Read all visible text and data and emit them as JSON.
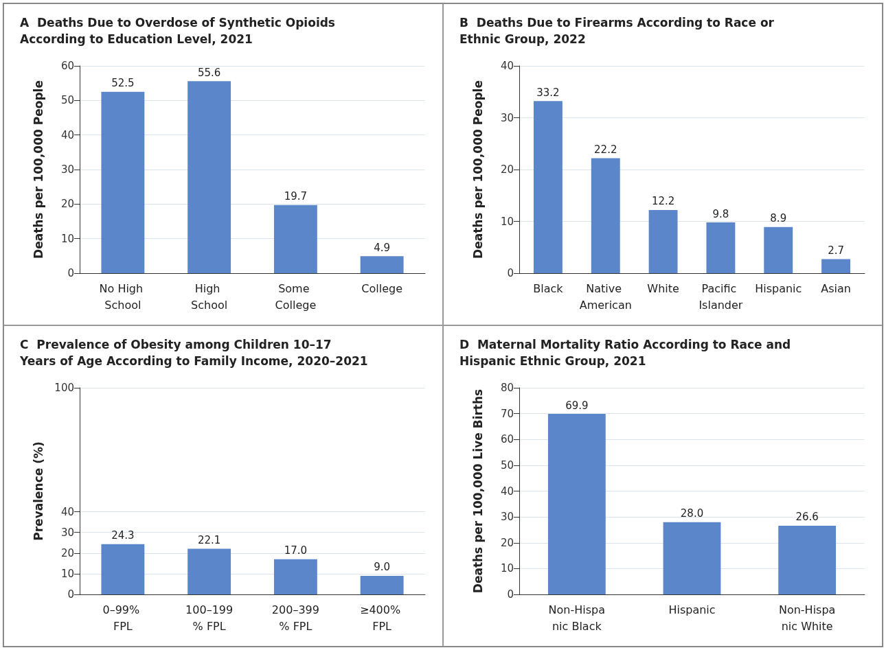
{
  "chart_data": [
    {
      "type": "bar",
      "title": "A  Deaths Due to Overdose of Synthetic Opioids According to Education Level, 2021",
      "ylabel": "Deaths per 100,000 People",
      "categories": [
        "No High School",
        "High School",
        "Some College",
        "College"
      ],
      "values": [
        52.5,
        55.6,
        19.7,
        4.9
      ],
      "value_labels": [
        "52.5",
        "55.6",
        "19.7",
        "4.9"
      ],
      "color": "#5b86c9",
      "ylim": [
        0,
        60
      ],
      "yticks": [
        0,
        10,
        20,
        30,
        40,
        50,
        60
      ],
      "grid": "y"
    },
    {
      "type": "bar",
      "title": "B  Deaths Due to Firearms According to Race or Ethnic Group, 2022",
      "ylabel": "Deaths per 100,000 People",
      "categories": [
        "Black",
        "Native American",
        "White",
        "Pacific Islander",
        "Hispanic",
        "Asian"
      ],
      "values": [
        33.2,
        22.2,
        12.2,
        9.8,
        8.9,
        2.7
      ],
      "value_labels": [
        "33.2",
        "22.2",
        "12.2",
        "9.8",
        "8.9",
        "2.7"
      ],
      "color": "#5b86c9",
      "ylim": [
        0,
        40
      ],
      "yticks": [
        0,
        10,
        20,
        30,
        40
      ],
      "grid": "y"
    },
    {
      "type": "bar",
      "title": "C  Prevalence of Obesity among Children 10–17 Years of Age According to Family Income, 2020–2021",
      "ylabel": "Prevalence (%)",
      "categories": [
        "0–99% FPL",
        "100–199% FPL",
        "200–399% FPL",
        "≥400% FPL"
      ],
      "values": [
        24.3,
        22.1,
        17.0,
        9.0
      ],
      "value_labels": [
        "24.3",
        "22.1",
        "17.0",
        "9.0"
      ],
      "color": "#5b86c9",
      "ylim": [
        0,
        100
      ],
      "yticks": [
        0,
        10,
        20,
        30,
        40,
        100
      ],
      "grid": "y"
    },
    {
      "type": "bar",
      "title": "D  Maternal Mortality Ratio According to Race and Hispanic Ethnic Group, 2021",
      "ylabel": "Deaths per 100,000 Live Births",
      "categories": [
        "Non-Hispanic Black",
        "Hispanic",
        "Non-Hispanic White"
      ],
      "values": [
        69.9,
        28.0,
        26.6
      ],
      "value_labels": [
        "69.9",
        "28.0",
        "26.6"
      ],
      "color": "#5b86c9",
      "ylim": [
        0,
        80
      ],
      "yticks": [
        0,
        10,
        20,
        30,
        40,
        50,
        60,
        70,
        80
      ],
      "grid": "y"
    }
  ]
}
